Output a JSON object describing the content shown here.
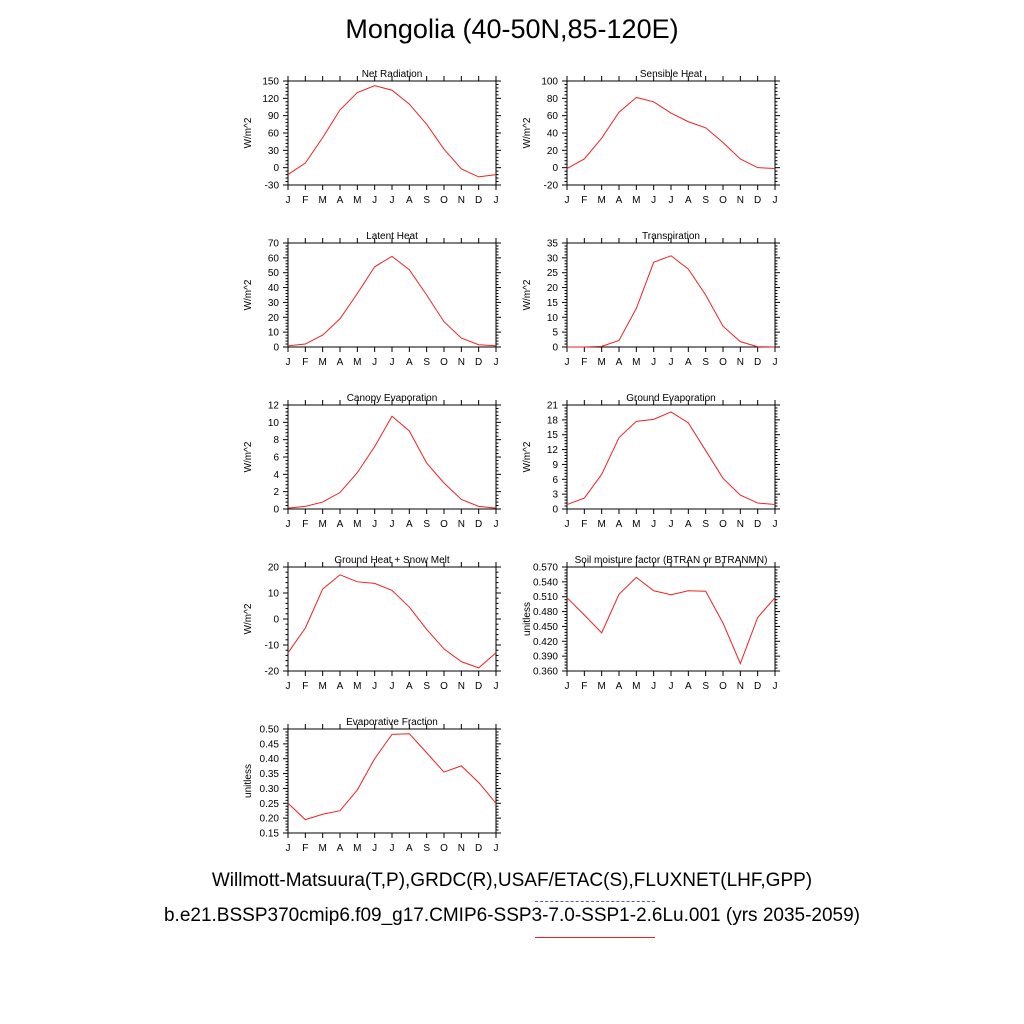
{
  "title": "Mongolia (40-50N,85-120E)",
  "legend": {
    "observed": "Willmott-Matsuura(T,P),GRDC(R),USAF/ETAC(S),FLUXNET(LHF,GPP)",
    "simulated": "b.e21.BSSP370cmip6.f09_g17.CMIP6-SSP3-7.0-SSP1-2.6Lu.001 (yrs 2035-2059)",
    "observed_color": "#5555dd",
    "simulated_color": "#ee2222"
  },
  "chart_data": [
    {
      "type": "line",
      "title": "Net Radiation",
      "ylabel": "W/m^2",
      "x": [
        "J",
        "F",
        "M",
        "A",
        "M",
        "J",
        "J",
        "A",
        "S",
        "O",
        "N",
        "D",
        "J"
      ],
      "ylim": [
        -30,
        150
      ],
      "yticks": [
        "-30",
        "0",
        "30",
        "60",
        "90",
        "120",
        "150"
      ],
      "series": [
        {
          "values": [
            -12,
            8,
            52,
            100,
            130,
            142,
            134,
            110,
            75,
            32,
            -2,
            -16,
            -12
          ],
          "color": "#ee2222"
        }
      ]
    },
    {
      "type": "line",
      "title": "Sensible Heat",
      "ylabel": "W/m^2",
      "x": [
        "J",
        "F",
        "M",
        "A",
        "M",
        "J",
        "J",
        "A",
        "S",
        "O",
        "N",
        "D",
        "J"
      ],
      "ylim": [
        -20,
        100
      ],
      "yticks": [
        "-20",
        "0",
        "20",
        "40",
        "60",
        "80",
        "100"
      ],
      "series": [
        {
          "values": [
            -1,
            10,
            34,
            64,
            81,
            76,
            63,
            53,
            46,
            29,
            10,
            0,
            -1
          ],
          "color": "#ee2222"
        }
      ]
    },
    {
      "type": "line",
      "title": "Latent Heat",
      "ylabel": "W/m^2",
      "x": [
        "J",
        "F",
        "M",
        "A",
        "M",
        "J",
        "J",
        "A",
        "S",
        "O",
        "N",
        "D",
        "J"
      ],
      "ylim": [
        0,
        70
      ],
      "yticks": [
        "0",
        "10",
        "20",
        "30",
        "40",
        "50",
        "60",
        "70"
      ],
      "series": [
        {
          "values": [
            0.8,
            2,
            8,
            19,
            36,
            54,
            61,
            52,
            35,
            17,
            6,
            1.5,
            0.8
          ],
          "color": "#ee2222"
        }
      ]
    },
    {
      "type": "line",
      "title": "Transpiration",
      "ylabel": "W/m^2",
      "x": [
        "J",
        "F",
        "M",
        "A",
        "M",
        "J",
        "J",
        "A",
        "S",
        "O",
        "N",
        "D",
        "J"
      ],
      "ylim": [
        0,
        35
      ],
      "yticks": [
        "0",
        "5",
        "10",
        "15",
        "20",
        "25",
        "30",
        "35"
      ],
      "series": [
        {
          "values": [
            0,
            0,
            0.2,
            2.2,
            13,
            28.5,
            30.7,
            26.2,
            17.5,
            7,
            1.8,
            0.1,
            0
          ],
          "color": "#ee2222"
        }
      ]
    },
    {
      "type": "line",
      "title": "Canopy Evaporation",
      "ylabel": "W/m^2",
      "x": [
        "J",
        "F",
        "M",
        "A",
        "M",
        "J",
        "J",
        "A",
        "S",
        "O",
        "N",
        "D",
        "J"
      ],
      "ylim": [
        0,
        12
      ],
      "yticks": [
        "0",
        "2",
        "4",
        "6",
        "8",
        "10",
        "12"
      ],
      "series": [
        {
          "values": [
            0.1,
            0.3,
            0.8,
            1.9,
            4.2,
            7.2,
            10.7,
            9,
            5.3,
            3,
            1.1,
            0.3,
            0.1
          ],
          "color": "#ee2222"
        }
      ]
    },
    {
      "type": "line",
      "title": "Ground Evaporation",
      "ylabel": "W/m^2",
      "x": [
        "J",
        "F",
        "M",
        "A",
        "M",
        "J",
        "J",
        "A",
        "S",
        "O",
        "N",
        "D",
        "J"
      ],
      "ylim": [
        0,
        21
      ],
      "yticks": [
        "0",
        "3",
        "6",
        "9",
        "12",
        "15",
        "18",
        "21"
      ],
      "series": [
        {
          "values": [
            0.9,
            2.2,
            7,
            14.4,
            17.7,
            18.1,
            19.6,
            17.4,
            11.8,
            6.2,
            2.8,
            1.2,
            0.9
          ],
          "color": "#ee2222"
        }
      ]
    },
    {
      "type": "line",
      "title": "Ground Heat + Snow Melt",
      "ylabel": "W/m^2",
      "x": [
        "J",
        "F",
        "M",
        "A",
        "M",
        "J",
        "J",
        "A",
        "S",
        "O",
        "N",
        "D",
        "J"
      ],
      "ylim": [
        -20,
        20
      ],
      "yticks": [
        "-20",
        "-10",
        "0",
        "10",
        "20"
      ],
      "series": [
        {
          "values": [
            -13,
            -3.5,
            11.5,
            17,
            14.3,
            13.7,
            11,
            4.6,
            -4,
            -11.5,
            -16.4,
            -18.8,
            -13
          ],
          "color": "#ee2222"
        }
      ]
    },
    {
      "type": "line",
      "title": "Soil moisture factor (BTRAN or BTRANMN)",
      "ylabel": "unitless",
      "x": [
        "J",
        "F",
        "M",
        "A",
        "M",
        "J",
        "J",
        "A",
        "S",
        "O",
        "N",
        "D",
        "J"
      ],
      "ylim": [
        0.36,
        0.57
      ],
      "yticks": [
        "0.360",
        "0.390",
        "0.420",
        "0.450",
        "0.480",
        "0.510",
        "0.540",
        "0.570"
      ],
      "series": [
        {
          "values": [
            0.508,
            0.473,
            0.437,
            0.515,
            0.549,
            0.522,
            0.514,
            0.522,
            0.521,
            0.457,
            0.375,
            0.468,
            0.508
          ],
          "color": "#ee2222"
        }
      ]
    },
    {
      "type": "line",
      "title": "Evaporative Fraction",
      "ylabel": "unitless",
      "x": [
        "J",
        "F",
        "M",
        "A",
        "M",
        "J",
        "J",
        "A",
        "S",
        "O",
        "N",
        "D",
        "J"
      ],
      "ylim": [
        0.15,
        0.5
      ],
      "yticks": [
        "0.15",
        "0.20",
        "0.25",
        "0.30",
        "0.35",
        "0.40",
        "0.45",
        "0.50"
      ],
      "series": [
        {
          "values": [
            0.25,
            0.195,
            0.213,
            0.225,
            0.295,
            0.4,
            0.482,
            0.484,
            0.42,
            0.355,
            0.376,
            0.32,
            0.25
          ],
          "color": "#ee2222"
        }
      ]
    }
  ]
}
